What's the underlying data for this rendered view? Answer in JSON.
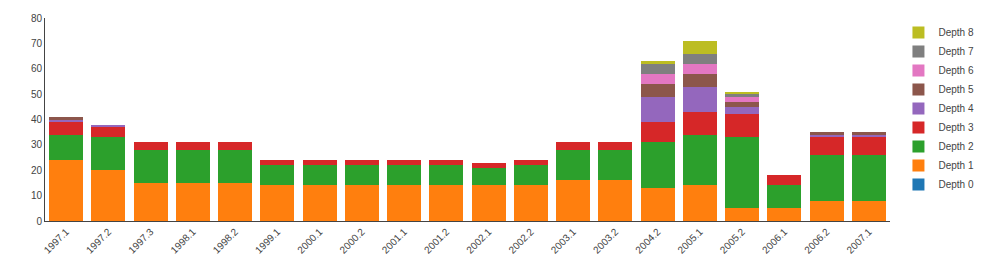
{
  "chart_data": {
    "type": "bar",
    "stacked": true,
    "grid": false,
    "legend": "right",
    "categories": [
      "1997.1",
      "1997.2",
      "1997.3",
      "1998.1",
      "1998.2",
      "1999.1",
      "2000.1",
      "2000.2",
      "2001.1",
      "2001.2",
      "2002.1",
      "2002.2",
      "2003.1",
      "2003.2",
      "2004.2",
      "2005.1",
      "2005.2",
      "2006.1",
      "2006.2",
      "2007.1"
    ],
    "series": [
      {
        "name": "Depth 0",
        "values": [
          0,
          0,
          0,
          0,
          0,
          0,
          0,
          0,
          0,
          0,
          0,
          0,
          0,
          0,
          0,
          0,
          0,
          0,
          0,
          0
        ]
      },
      {
        "name": "Depth 1",
        "values": [
          24,
          20,
          15,
          15,
          15,
          14,
          14,
          14,
          14,
          14,
          14,
          14,
          16,
          16,
          13,
          14,
          5,
          5,
          8,
          8
        ]
      },
      {
        "name": "Depth 2",
        "values": [
          10,
          13,
          13,
          13,
          13,
          8,
          8,
          8,
          8,
          8,
          7,
          8,
          12,
          12,
          18,
          20,
          28,
          9,
          18,
          18
        ]
      },
      {
        "name": "Depth 3",
        "values": [
          5,
          4,
          3,
          3,
          3,
          2,
          2,
          2,
          2,
          2,
          2,
          2,
          3,
          3,
          8,
          9,
          9,
          4,
          7,
          7
        ]
      },
      {
        "name": "Depth 4",
        "values": [
          1,
          1,
          0,
          0,
          0,
          0,
          0,
          0,
          0,
          0,
          0,
          0,
          0,
          0,
          10,
          10,
          3,
          0,
          1,
          1
        ]
      },
      {
        "name": "Depth 5",
        "values": [
          1,
          0,
          0,
          0,
          0,
          0,
          0,
          0,
          0,
          0,
          0,
          0,
          0,
          0,
          5,
          5,
          2,
          0,
          1,
          1
        ]
      },
      {
        "name": "Depth 6",
        "values": [
          0,
          0,
          0,
          0,
          0,
          0,
          0,
          0,
          0,
          0,
          0,
          0,
          0,
          0,
          4,
          4,
          2,
          0,
          0,
          0
        ]
      },
      {
        "name": "Depth 7",
        "values": [
          0,
          0,
          0,
          0,
          0,
          0,
          0,
          0,
          0,
          0,
          0,
          0,
          0,
          0,
          4,
          4,
          1,
          0,
          0,
          0
        ]
      },
      {
        "name": "Depth 8",
        "values": [
          0,
          0,
          0,
          0,
          0,
          0,
          0,
          0,
          0,
          0,
          0,
          0,
          0,
          0,
          1,
          5,
          1,
          0,
          0,
          0
        ]
      }
    ],
    "ylim": [
      0,
      80
    ],
    "yticks": [
      0,
      10,
      20,
      30,
      40,
      50,
      60,
      70,
      80
    ]
  }
}
